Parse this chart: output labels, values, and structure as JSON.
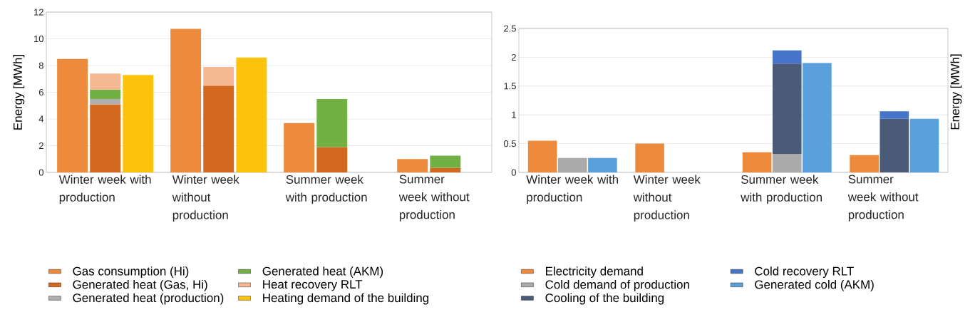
{
  "chart_data": [
    {
      "type": "bar",
      "ylabel": "Energy [MWh]",
      "grid": "y",
      "legend": "bottom",
      "categories": [
        "Winter week with production",
        "Winter week without production",
        "Summer week with production",
        "Summer week without production"
      ],
      "ylim": [
        0,
        12
      ],
      "yticks": [
        0,
        2,
        4,
        6,
        8,
        10,
        12
      ],
      "series": [
        {
          "name": "Gas consumption (Hi)",
          "color": "#ee8a3c",
          "values": [
            8.5,
            10.75,
            3.7,
            1.0
          ]
        },
        {
          "name": "Generated heat (Gas, Hi)",
          "color": "#d2691e",
          "values": [
            5.1,
            6.5,
            1.9,
            0.35
          ],
          "base": [
            0,
            0,
            0,
            0
          ]
        },
        {
          "name": "Generated heat (production)",
          "color": "#b0b0b0",
          "values": [
            0.4,
            null,
            null,
            null
          ],
          "base": [
            5.1,
            null,
            null,
            null
          ]
        },
        {
          "name": "Generated heat (AKM)",
          "color": "#72b043",
          "values": [
            0.7,
            null,
            3.6,
            0.9
          ],
          "base": [
            5.5,
            null,
            1.9,
            0.35
          ]
        },
        {
          "name": "Heat recovery RLT",
          "color": "#f6b793",
          "values": [
            1.2,
            1.4,
            null,
            null
          ],
          "base": [
            6.2,
            6.5,
            null,
            null
          ]
        },
        {
          "name": "Heating demand of the building",
          "color": "#fcc30a",
          "values": [
            7.3,
            8.6,
            null,
            null
          ]
        }
      ]
    },
    {
      "type": "bar",
      "ylabel": "Energy [MWh]",
      "grid": "y",
      "legend": "bottom",
      "categories": [
        "Winter week with production",
        "Winter week without production",
        "Summer week with production",
        "Summer week without production"
      ],
      "ylim": [
        0,
        2.5
      ],
      "yticks": [
        0,
        0.5,
        1,
        1.5,
        2,
        2.5
      ],
      "series": [
        {
          "name": "Electricity demand",
          "color": "#ee8a3c",
          "values": [
            0.55,
            0.5,
            0.35,
            0.3
          ]
        },
        {
          "name": "Cold demand of production",
          "color": "#ababab",
          "values": [
            0.25,
            null,
            0.32,
            null
          ],
          "base": [
            0,
            null,
            0,
            null
          ]
        },
        {
          "name": "Cooling of the building",
          "color": "#4a5a78",
          "values": [
            null,
            null,
            1.57,
            0.93
          ],
          "base": [
            null,
            null,
            0.32,
            0
          ]
        },
        {
          "name": "Cold recovery RLT",
          "color": "#4674c8",
          "values": [
            null,
            null,
            0.23,
            0.13
          ],
          "base": [
            null,
            null,
            1.89,
            0.93
          ]
        },
        {
          "name": "Generated cold (AKM)",
          "color": "#5aa0dc",
          "values": [
            0.25,
            null,
            1.9,
            0.93
          ]
        }
      ]
    }
  ]
}
